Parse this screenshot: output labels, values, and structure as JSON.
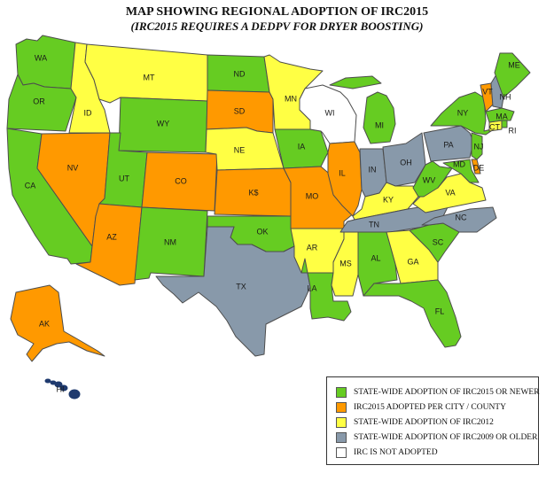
{
  "title": "MAP SHOWING REGIONAL ADOPTION OF IRC2015",
  "subtitle": "(IRC2015 REQUIRES A DEDPV FOR DRYER BOOSTING)",
  "colors": {
    "irc2015_or_newer": "#66cc22",
    "irc2015_city_county": "#ff9900",
    "irc2012": "#ffff44",
    "irc2009_or_older": "#8899aa",
    "not_adopted": "#ffffff"
  },
  "legend": [
    {
      "category": "irc2015_or_newer",
      "label": "STATE-WIDE ADOPTION OF IRC2015 OR NEWER"
    },
    {
      "category": "irc2015_city_county",
      "label": "IRC2015 ADOPTED PER CITY / COUNTY"
    },
    {
      "category": "irc2012",
      "label": "STATE-WIDE ADOPTION OF IRC2012"
    },
    {
      "category": "irc2009_or_older",
      "label": "STATE-WIDE ADOPTION OF IRC2009 OR OLDER"
    },
    {
      "category": "not_adopted",
      "label": "IRC IS NOT ADOPTED"
    }
  ],
  "states": [
    {
      "code": "WA",
      "label": "WA",
      "category": "irc2015_or_newer"
    },
    {
      "code": "OR",
      "label": "OR",
      "category": "irc2015_or_newer"
    },
    {
      "code": "CA",
      "label": "CA",
      "category": "irc2015_or_newer"
    },
    {
      "code": "ID",
      "label": "ID",
      "category": "irc2012"
    },
    {
      "code": "NV",
      "label": "NV",
      "category": "irc2015_city_county"
    },
    {
      "code": "MT",
      "label": "MT",
      "category": "irc2012"
    },
    {
      "code": "WY",
      "label": "WY",
      "category": "irc2015_or_newer"
    },
    {
      "code": "UT",
      "label": "UT",
      "category": "irc2015_or_newer"
    },
    {
      "code": "AZ",
      "label": "AZ",
      "category": "irc2015_city_county"
    },
    {
      "code": "CO",
      "label": "CO",
      "category": "irc2015_city_county"
    },
    {
      "code": "NM",
      "label": "NM",
      "category": "irc2015_or_newer"
    },
    {
      "code": "ND",
      "label": "ND",
      "category": "irc2015_or_newer"
    },
    {
      "code": "SD",
      "label": "SD",
      "category": "irc2015_city_county"
    },
    {
      "code": "NE",
      "label": "NE",
      "category": "irc2012"
    },
    {
      "code": "KS",
      "label": "K$",
      "category": "irc2015_city_county"
    },
    {
      "code": "OK",
      "label": "OK",
      "category": "irc2015_or_newer"
    },
    {
      "code": "TX",
      "label": "TX",
      "category": "irc2009_or_older"
    },
    {
      "code": "MN",
      "label": "MN",
      "category": "irc2012"
    },
    {
      "code": "IA",
      "label": "IA",
      "category": "irc2015_or_newer"
    },
    {
      "code": "MO",
      "label": "MO",
      "category": "irc2015_city_county"
    },
    {
      "code": "AR",
      "label": "AR",
      "category": "irc2012"
    },
    {
      "code": "LA",
      "label": "LA",
      "category": "irc2015_or_newer"
    },
    {
      "code": "WI",
      "label": "WI",
      "category": "not_adopted"
    },
    {
      "code": "IL",
      "label": "IL",
      "category": "irc2015_city_county"
    },
    {
      "code": "MI",
      "label": "MI",
      "category": "irc2015_or_newer"
    },
    {
      "code": "IN",
      "label": "IN",
      "category": "irc2009_or_older"
    },
    {
      "code": "OH",
      "label": "OH",
      "category": "irc2009_or_older"
    },
    {
      "code": "KY",
      "label": "KY",
      "category": "irc2012"
    },
    {
      "code": "TN",
      "label": "TN",
      "category": "irc2009_or_older"
    },
    {
      "code": "MS",
      "label": "MS",
      "category": "irc2012"
    },
    {
      "code": "AL",
      "label": "AL",
      "category": "irc2015_or_newer"
    },
    {
      "code": "GA",
      "label": "GA",
      "category": "irc2012"
    },
    {
      "code": "FL",
      "label": "FL",
      "category": "irc2015_or_newer"
    },
    {
      "code": "SC",
      "label": "SC",
      "category": "irc2015_or_newer"
    },
    {
      "code": "NC",
      "label": "NC",
      "category": "irc2009_or_older"
    },
    {
      "code": "VA",
      "label": "VA",
      "category": "irc2012"
    },
    {
      "code": "WV",
      "label": "WV",
      "category": "irc2015_or_newer"
    },
    {
      "code": "MD",
      "label": "MD",
      "category": "irc2015_or_newer"
    },
    {
      "code": "DE",
      "label": "DE",
      "category": "irc2015_city_county"
    },
    {
      "code": "PA",
      "label": "PA",
      "category": "irc2009_or_older"
    },
    {
      "code": "NJ",
      "label": "NJ",
      "category": "irc2015_or_newer"
    },
    {
      "code": "NY",
      "label": "NY",
      "category": "irc2015_or_newer"
    },
    {
      "code": "CT",
      "label": "CT",
      "category": "irc2012"
    },
    {
      "code": "RI",
      "label": "RI",
      "category": "irc2015_or_newer"
    },
    {
      "code": "MA",
      "label": "MA",
      "category": "irc2015_or_newer"
    },
    {
      "code": "VT",
      "label": "VT",
      "category": "irc2015_city_county"
    },
    {
      "code": "NH",
      "label": "NH",
      "category": "irc2009_or_older"
    },
    {
      "code": "ME",
      "label": "ME",
      "category": "irc2015_or_newer"
    },
    {
      "code": "AK",
      "label": "AK",
      "category": "irc2015_city_county"
    },
    {
      "code": "HI",
      "label": "HI",
      "category": "not_adopted"
    }
  ]
}
